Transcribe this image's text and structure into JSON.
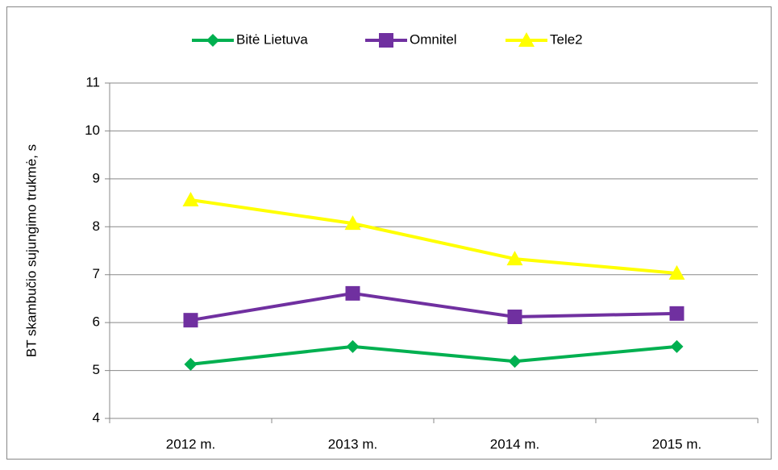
{
  "chart_data": {
    "type": "line",
    "y_label": "BT skambučio sujungimo trukmė, s",
    "categories": [
      "2012 m.",
      "2013 m.",
      "2014 m.",
      "2015 m."
    ],
    "series": [
      {
        "name": "Bitė Lietuva",
        "color": "#00b050",
        "marker": "diamond",
        "values": [
          5.13,
          5.5,
          5.19,
          5.5
        ]
      },
      {
        "name": "Omnitel",
        "color": "#7030a0",
        "marker": "square",
        "values": [
          6.05,
          6.61,
          6.12,
          6.19
        ]
      },
      {
        "name": "Tele2",
        "color": "#ffff00",
        "marker": "triangle",
        "values": [
          8.56,
          8.07,
          7.33,
          7.03
        ]
      }
    ],
    "ylim": [
      4,
      11
    ],
    "yticks": [
      4,
      5,
      6,
      7,
      8,
      9,
      10,
      11
    ],
    "grid": true,
    "legend": "top"
  }
}
